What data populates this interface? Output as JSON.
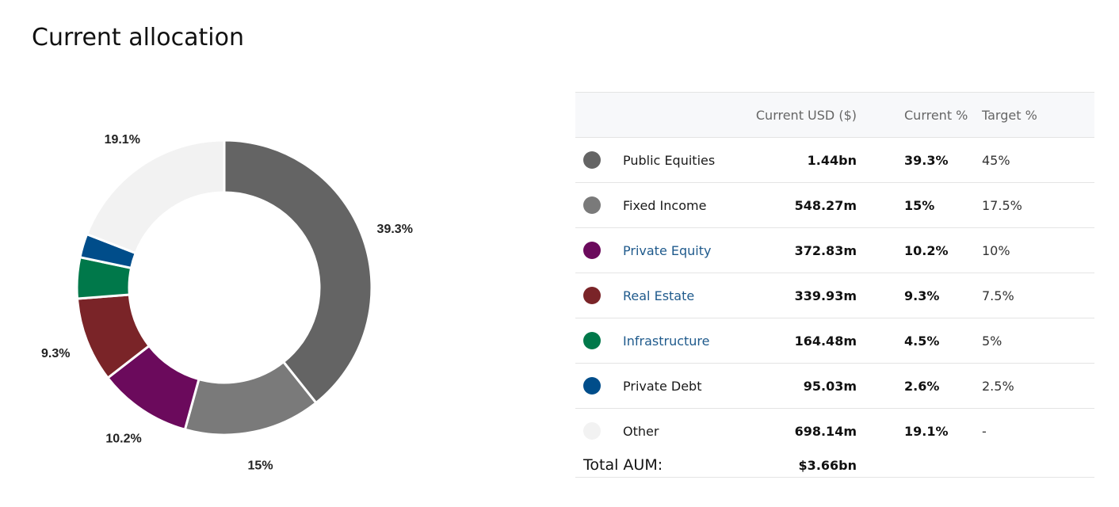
{
  "page": {
    "title": "Current allocation"
  },
  "table": {
    "headers": {
      "usd": "Current USD ($)",
      "current_pct": "Current %",
      "target_pct": "Target %"
    },
    "rows": [
      {
        "name": "Public Equities",
        "usd": "1.44bn",
        "current": "39.3%",
        "target": "45%",
        "color": "#646464",
        "link": false
      },
      {
        "name": "Fixed Income",
        "usd": "548.27m",
        "current": "15%",
        "target": "17.5%",
        "color": "#7a7a7a",
        "link": false
      },
      {
        "name": "Private Equity",
        "usd": "372.83m",
        "current": "10.2%",
        "target": "10%",
        "color": "#6b0a5c",
        "link": true
      },
      {
        "name": "Real Estate",
        "usd": "339.93m",
        "current": "9.3%",
        "target": "7.5%",
        "color": "#7a2428",
        "link": true
      },
      {
        "name": "Infrastructure",
        "usd": "164.48m",
        "current": "4.5%",
        "target": "5%",
        "color": "#00784a",
        "link": true
      },
      {
        "name": "Private Debt",
        "usd": "95.03m",
        "current": "2.6%",
        "target": "2.5%",
        "color": "#004d8a",
        "link": false
      },
      {
        "name": "Other",
        "usd": "698.14m",
        "current": "19.1%",
        "target": "-",
        "color": "#f2f2f2",
        "link": false
      }
    ],
    "total": {
      "label": "Total AUM:",
      "value": "$3.66bn"
    }
  },
  "chart_data": {
    "type": "pie",
    "donut": true,
    "categories": [
      "Public Equities",
      "Fixed Income",
      "Private Equity",
      "Real Estate",
      "Infrastructure",
      "Private Debt",
      "Other"
    ],
    "values": [
      39.3,
      15,
      10.2,
      9.3,
      4.5,
      2.6,
      19.1
    ],
    "colors": [
      "#646464",
      "#7a7a7a",
      "#6b0a5c",
      "#7a2428",
      "#00784a",
      "#004d8a",
      "#f2f2f2"
    ],
    "data_labels": [
      "39.3%",
      "15%",
      "10.2%",
      "9.3%",
      "",
      "",
      "19.1%"
    ]
  }
}
